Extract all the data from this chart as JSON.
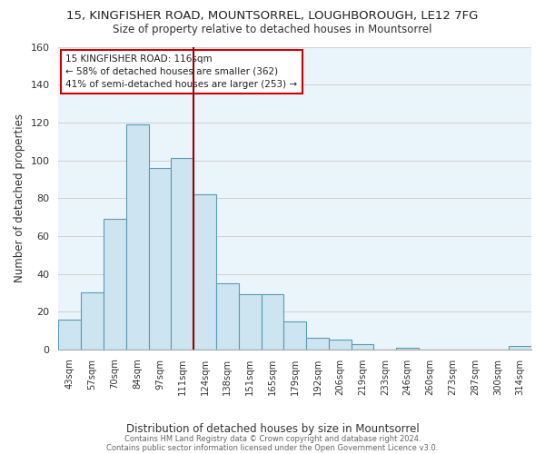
{
  "title": "15, KINGFISHER ROAD, MOUNTSORREL, LOUGHBOROUGH, LE12 7FG",
  "subtitle": "Size of property relative to detached houses in Mountsorrel",
  "xlabel": "Distribution of detached houses by size in Mountsorrel",
  "ylabel": "Number of detached properties",
  "bar_labels": [
    "43sqm",
    "57sqm",
    "70sqm",
    "84sqm",
    "97sqm",
    "111sqm",
    "124sqm",
    "138sqm",
    "151sqm",
    "165sqm",
    "179sqm",
    "192sqm",
    "206sqm",
    "219sqm",
    "233sqm",
    "246sqm",
    "260sqm",
    "273sqm",
    "287sqm",
    "300sqm",
    "314sqm"
  ],
  "bar_heights": [
    16,
    30,
    69,
    119,
    96,
    101,
    82,
    35,
    29,
    29,
    15,
    6,
    5,
    3,
    0,
    1,
    0,
    0,
    0,
    0,
    2
  ],
  "bar_color": "#cce5f0",
  "bar_edge_color": "#5b9ab5",
  "vline_color": "#990000",
  "annotation_text_line1": "15 KINGFISHER ROAD: 116sqm",
  "annotation_text_line2": "← 58% of detached houses are smaller (362)",
  "annotation_text_line3": "41% of semi-detached houses are larger (253) →",
  "ylim": [
    0,
    160
  ],
  "yticks": [
    0,
    20,
    40,
    60,
    80,
    100,
    120,
    140,
    160
  ],
  "footer1": "Contains HM Land Registry data © Crown copyright and database right 2024.",
  "footer2": "Contains public sector information licensed under the Open Government Licence v3.0.",
  "bg_color": "#ffffff",
  "grid_color": "#d0d0d0",
  "plot_bg_color": "#eaf4fb"
}
